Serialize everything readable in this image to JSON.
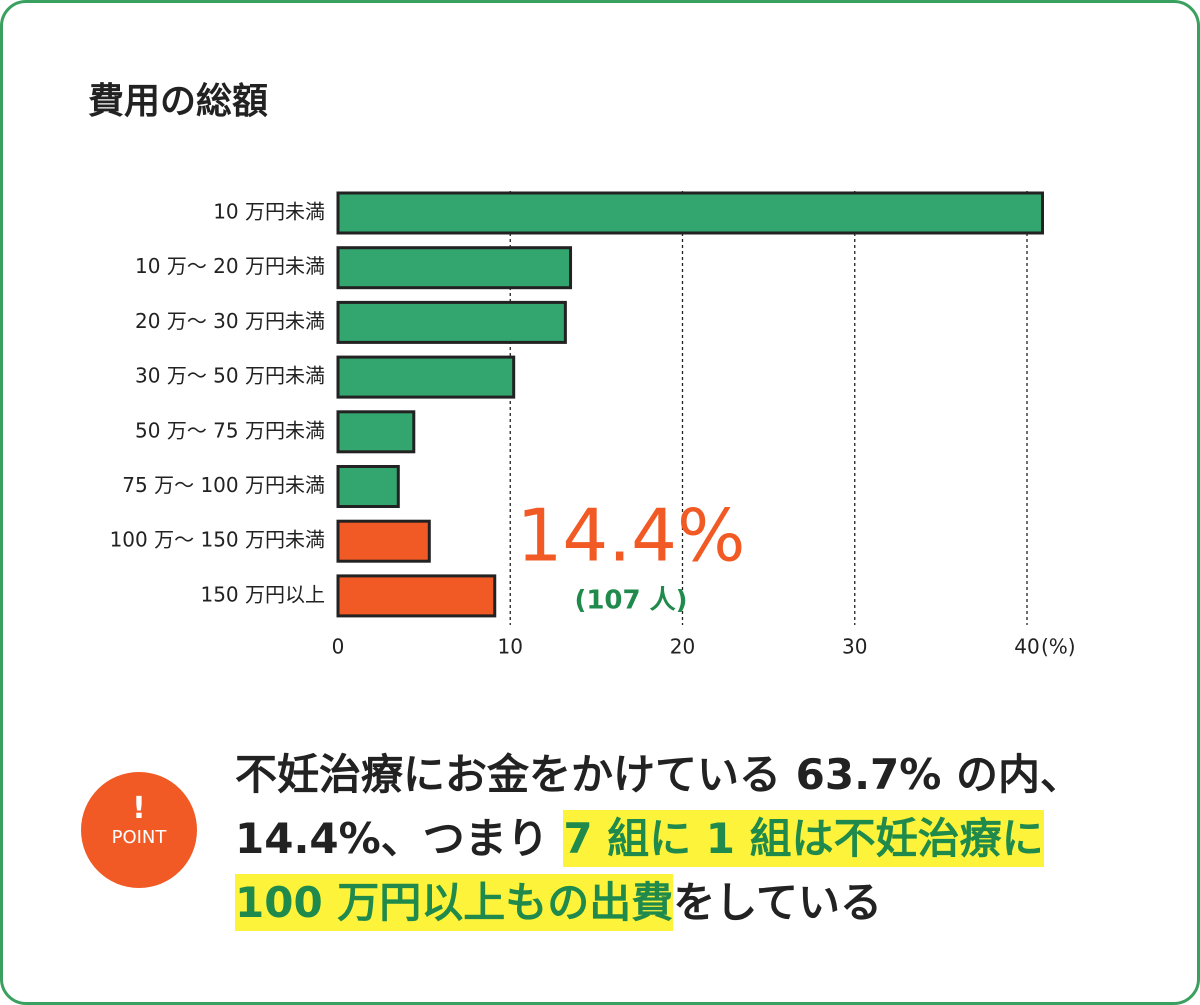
{
  "chart_data": {
    "type": "barh",
    "title": "費用の総額",
    "categories": [
      "10 万円未満",
      "10 万〜 20 万円未満",
      "20 万〜 30 万円未満",
      "30 万〜 50 万円未満",
      "50 万〜 75 万円未満",
      "75 万〜 100 万円未満",
      "100 万〜 150 万円未満",
      "150 万円以上"
    ],
    "values": [
      40.9,
      13.5,
      13.2,
      10.2,
      4.4,
      3.5,
      5.3,
      9.1
    ],
    "colors": [
      "#33a56f",
      "#33a56f",
      "#33a56f",
      "#33a56f",
      "#33a56f",
      "#33a56f",
      "#f15a24",
      "#f15a24"
    ],
    "xlim": [
      0,
      41
    ],
    "xticks": [
      0,
      10,
      20,
      30,
      40
    ],
    "x_unit": "(%)",
    "grid": true,
    "annotations": [
      {
        "text": "14.4%",
        "color": "#f15a24"
      },
      {
        "text": "(107 人)",
        "color": "#1f8a4c"
      }
    ]
  },
  "point": {
    "badge_mark": "!",
    "badge_label": "POINT",
    "lines": [
      [
        {
          "text": "不妊治療にお金をかけている 63.7% の内、",
          "highlight": false
        }
      ],
      [
        {
          "text": "14.4%、つまり ",
          "highlight": false
        },
        {
          "text": "7 組に 1 組は不妊治療に",
          "highlight": true
        }
      ],
      [
        {
          "text": "100 万円以上もの出費",
          "highlight": true
        },
        {
          "text": "をしている",
          "highlight": false
        }
      ]
    ]
  }
}
